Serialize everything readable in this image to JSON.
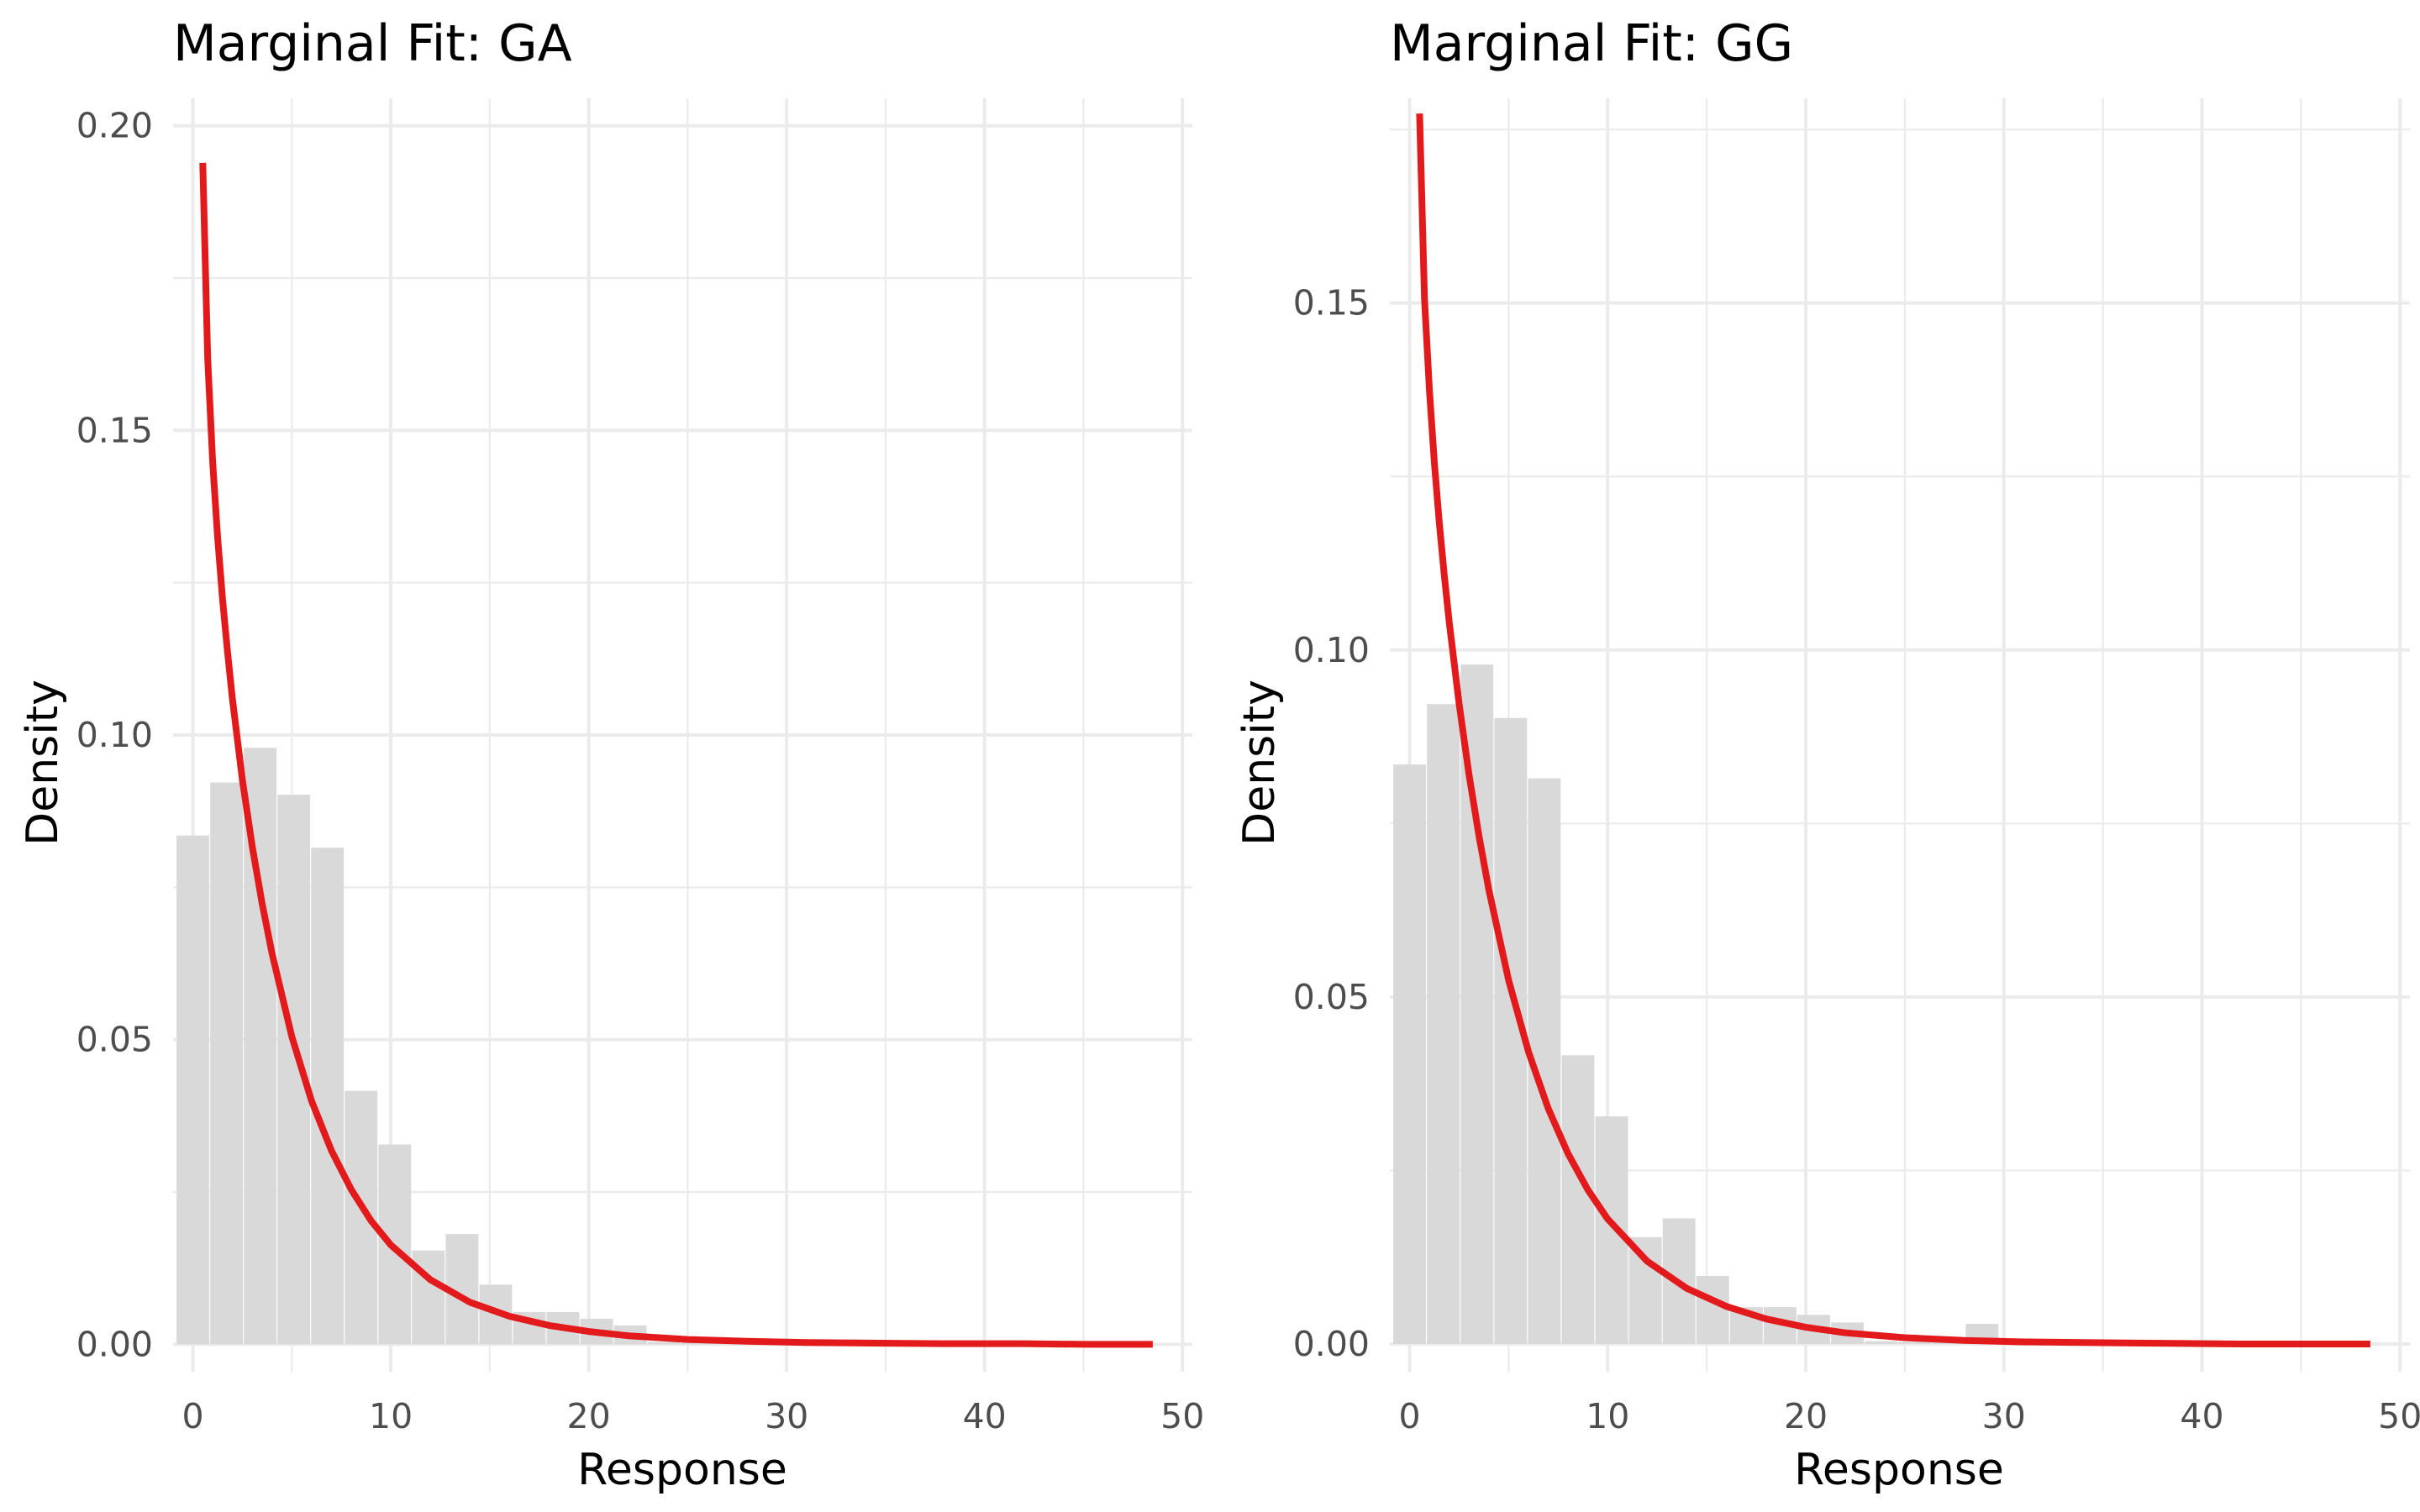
{
  "chart_data": [
    {
      "type": "bar",
      "title": "Marginal Fit: GA",
      "xlabel": "Response",
      "ylabel": "Density",
      "xlim": [
        -1.0,
        50.5
      ],
      "ylim": [
        -0.0045,
        0.2045
      ],
      "x_ticks": [
        0,
        10,
        20,
        30,
        40,
        50
      ],
      "x_tick_labels": [
        "0",
        "10",
        "20",
        "30",
        "40",
        "50"
      ],
      "y_ticks": [
        0.0,
        0.05,
        0.1,
        0.15,
        0.2
      ],
      "y_tick_labels": [
        "0.00",
        "0.05",
        "0.10",
        "0.15",
        "0.20"
      ],
      "grid": true,
      "histogram": {
        "bin_width": 1.65,
        "bin_centers": [
          0.0,
          1.7,
          3.4,
          5.1,
          6.8,
          8.5,
          10.2,
          11.9,
          13.6,
          15.3,
          17.0,
          18.7,
          20.4,
          22.1,
          23.8,
          25.5,
          27.2,
          28.9
        ],
        "values": [
          0.0835,
          0.0922,
          0.0979,
          0.0902,
          0.0815,
          0.0416,
          0.0328,
          0.0154,
          0.0181,
          0.0098,
          0.0053,
          0.0053,
          0.0042,
          0.0031,
          0.0004,
          0.0003,
          0.0002,
          0.0008
        ]
      },
      "series": [
        {
          "x": [
            0.5,
            0.75,
            1.0,
            1.25,
            1.5,
            1.75,
            2.0,
            2.5,
            3.0,
            3.5,
            4.0,
            5.0,
            6.0,
            7.0,
            8.0,
            9.0,
            10.0,
            12.0,
            14.0,
            16.0,
            18.0,
            20.0,
            22.0,
            25.0,
            28.0,
            31.0,
            34.0,
            38.0,
            42.0,
            45.0,
            48.5
          ],
          "y": [
            0.1939,
            0.1617,
            0.1448,
            0.1324,
            0.1222,
            0.1136,
            0.1058,
            0.0927,
            0.0817,
            0.0723,
            0.0641,
            0.0505,
            0.0399,
            0.0318,
            0.0254,
            0.0203,
            0.0163,
            0.0106,
            0.0069,
            0.0046,
            0.0031,
            0.0021,
            0.0014,
            0.0008,
            0.0005,
            0.0003,
            0.0002,
            0.0001,
            0.0001,
            0.0,
            0.0
          ],
          "color": "#e31a1c"
        }
      ]
    },
    {
      "type": "bar",
      "title": "Marginal Fit: GG",
      "xlabel": "Response",
      "ylabel": "Density",
      "xlim": [
        -1.0,
        50.5
      ],
      "ylim": [
        -0.004,
        0.1795
      ],
      "x_ticks": [
        0,
        10,
        20,
        30,
        40,
        50
      ],
      "x_tick_labels": [
        "0",
        "10",
        "20",
        "30",
        "40",
        "50"
      ],
      "y_ticks": [
        0.0,
        0.05,
        0.1,
        0.15
      ],
      "y_tick_labels": [
        "0.00",
        "0.05",
        "0.10",
        "0.15"
      ],
      "grid": true,
      "histogram": {
        "bin_width": 1.65,
        "bin_centers": [
          0.0,
          1.7,
          3.4,
          5.1,
          6.8,
          8.5,
          10.2,
          11.9,
          13.6,
          15.3,
          17.0,
          18.7,
          20.4,
          22.1,
          23.8,
          25.5,
          27.2,
          28.9
        ],
        "values": [
          0.0835,
          0.0922,
          0.0979,
          0.0902,
          0.0815,
          0.0416,
          0.0328,
          0.0154,
          0.0181,
          0.0098,
          0.0053,
          0.0053,
          0.0042,
          0.0031,
          0.0004,
          0.0003,
          0.0002,
          0.0029
        ]
      },
      "series": [
        {
          "x": [
            0.5,
            0.75,
            1.0,
            1.25,
            1.5,
            1.75,
            2.0,
            2.5,
            3.0,
            3.5,
            4.0,
            5.0,
            6.0,
            7.0,
            8.0,
            9.0,
            10.0,
            12.0,
            14.0,
            16.0,
            18.0,
            20.0,
            22.0,
            25.0,
            28.0,
            31.0,
            34.0,
            38.0,
            42.0,
            45.0,
            48.5
          ],
          "y": [
            0.1773,
            0.1505,
            0.1375,
            0.127,
            0.1183,
            0.1108,
            0.104,
            0.0922,
            0.082,
            0.0732,
            0.0654,
            0.0524,
            0.0421,
            0.0339,
            0.0274,
            0.0222,
            0.018,
            0.0119,
            0.008,
            0.0054,
            0.0036,
            0.0024,
            0.0016,
            0.0009,
            0.0005,
            0.0003,
            0.0002,
            0.0001,
            0.0,
            0.0,
            0.0
          ],
          "color": "#e31a1c"
        }
      ]
    }
  ]
}
